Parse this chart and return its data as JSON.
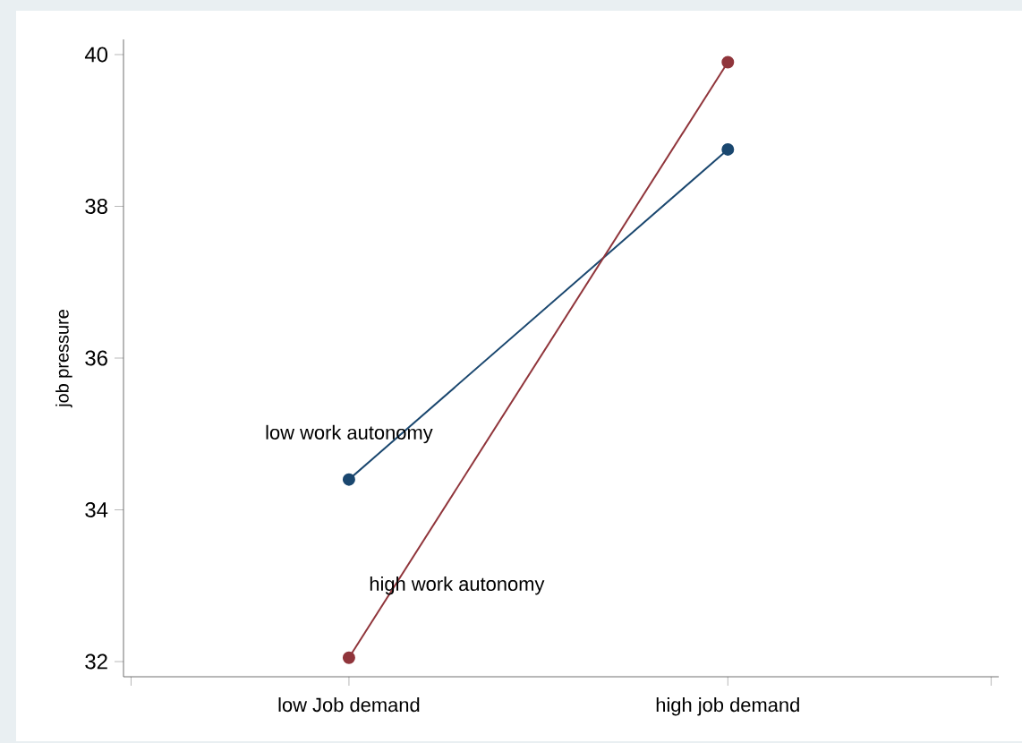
{
  "chart_data": {
    "type": "line",
    "ylabel": "job pressure",
    "categories": [
      "low Job demand",
      "high job demand"
    ],
    "series": [
      {
        "name": "low work autonomy",
        "color": "#1a476f",
        "values": [
          34.4,
          38.75
        ]
      },
      {
        "name": "high work autonomy",
        "color": "#90353b",
        "values": [
          32.05,
          39.9
        ]
      }
    ],
    "ylim": [
      31.8,
      40.2
    ],
    "yticks": [
      32,
      34,
      36,
      38,
      40
    ],
    "marker": "circle",
    "line_style": "solid",
    "grid": false
  }
}
